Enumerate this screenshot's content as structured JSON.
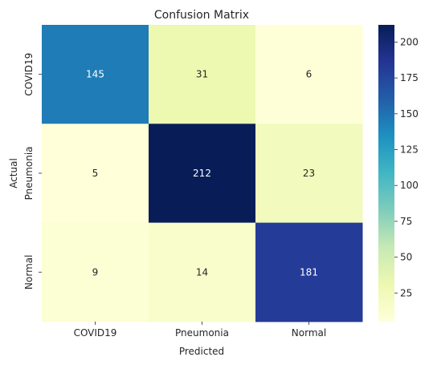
{
  "chart_data": {
    "type": "heatmap",
    "title": "Confusion Matrix",
    "xlabel": "Predicted",
    "ylabel": "Actual",
    "x_categories": [
      "COVID19",
      "Pneumonia",
      "Normal"
    ],
    "y_categories": [
      "COVID19",
      "Pneumonia",
      "Normal"
    ],
    "values": [
      [
        145,
        31,
        6
      ],
      [
        5,
        212,
        23
      ],
      [
        9,
        14,
        181
      ]
    ],
    "colormap": "YlGnBu",
    "vmin": 5,
    "vmax": 212,
    "colorbar_ticks": [
      25,
      50,
      75,
      100,
      125,
      150,
      175,
      200
    ],
    "colorbar_tick_labels": [
      "25",
      "50",
      "75",
      "100",
      "125",
      "150",
      "175",
      "200"
    ]
  }
}
